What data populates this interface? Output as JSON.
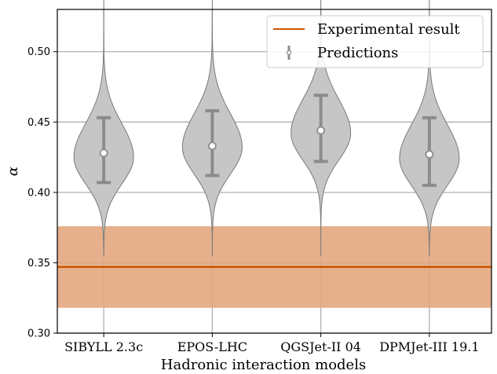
{
  "chart_data": {
    "type": "violin",
    "xlabel": "Hadronic interaction models",
    "ylabel": "α",
    "categories": [
      "SIBYLL 2.3c",
      "EPOS-LHC",
      "QGSJet-II 04",
      "DPMJet-III 19.1"
    ],
    "ylim": [
      0.3,
      0.53
    ],
    "yticks": [
      "0.30",
      "0.35",
      "0.40",
      "0.45",
      "0.50"
    ],
    "grid": true,
    "legend_position": "top-right",
    "predictions": [
      {
        "model": "SIBYLL 2.3c",
        "median": 0.428,
        "low": 0.407,
        "high": 0.453,
        "mode": 0.425,
        "width": 0.066
      },
      {
        "model": "EPOS-LHC",
        "median": 0.433,
        "low": 0.412,
        "high": 0.458,
        "mode": 0.432,
        "width": 0.066
      },
      {
        "model": "QGSJet-II 04",
        "median": 0.444,
        "low": 0.422,
        "high": 0.469,
        "mode": 0.442,
        "width": 0.066
      },
      {
        "model": "DPMJet-III 19.1",
        "median": 0.427,
        "low": 0.405,
        "high": 0.453,
        "mode": 0.424,
        "width": 0.066
      }
    ],
    "experimental": {
      "value": 0.347,
      "low": 0.318,
      "high": 0.376
    },
    "legend": {
      "experimental": "Experimental result",
      "predictions": "Predictions"
    },
    "colors": {
      "experimental_line": "#cc5500",
      "experimental_band": "#e3a57c",
      "violin_fill": "#c6c6c6",
      "violin_edge": "#7a7a7a",
      "errorbar": "#8c8c8c",
      "grid": "#b0b0b0"
    }
  }
}
